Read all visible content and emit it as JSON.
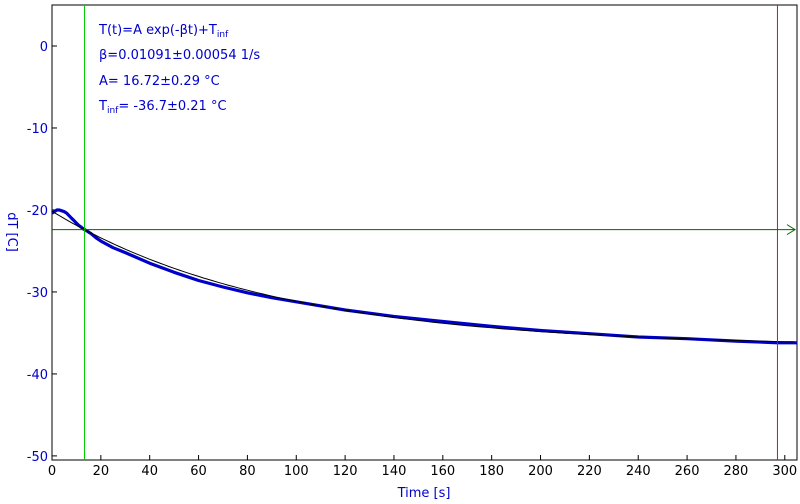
{
  "chart_data": {
    "type": "line",
    "xlabel": "Time [s]",
    "ylabel": "dT [C]",
    "xlim": [
      0,
      305
    ],
    "ylim": [
      -50.5,
      5
    ],
    "xticks": [
      0,
      20,
      40,
      60,
      80,
      100,
      120,
      140,
      160,
      180,
      200,
      220,
      240,
      260,
      280,
      300
    ],
    "yticks": [
      0,
      -10,
      -20,
      -30,
      -40,
      -50
    ],
    "grid": false,
    "fit_annotation": {
      "line1_main": "T(t)=A exp(-βt)+T",
      "line1_sub": "inf",
      "line2": "β=0.01091±0.00054 1/s",
      "line3": "A= 16.72±0.29 °C",
      "line4_pre": "T",
      "line4_sub": "inf",
      "line4_post": "= -36.7±0.21 °C"
    },
    "fit": {
      "A": 16.72,
      "beta": 0.01091,
      "T_inf": -36.7,
      "t0": 13.3
    },
    "series": [
      {
        "x": [
          0,
          1,
          2,
          3,
          4,
          5,
          6,
          7,
          8,
          9,
          10,
          11,
          12,
          13,
          14,
          16,
          18,
          20,
          25,
          30,
          40,
          50,
          60,
          70,
          80,
          90,
          100,
          120,
          140,
          160,
          180,
          200,
          220,
          240,
          260,
          280,
          297,
          305
        ],
        "y": [
          -20.4,
          -20.2,
          -20.0,
          -20.0,
          -20.1,
          -20.2,
          -20.4,
          -20.7,
          -21.0,
          -21.3,
          -21.6,
          -21.9,
          -22.1,
          -22.35,
          -22.5,
          -22.9,
          -23.4,
          -23.8,
          -24.6,
          -25.2,
          -26.5,
          -27.6,
          -28.6,
          -29.4,
          -30.1,
          -30.7,
          -31.2,
          -32.2,
          -33.0,
          -33.6,
          -34.2,
          -34.7,
          -35.1,
          -35.5,
          -35.7,
          -36.0,
          -36.2,
          -36.2
        ]
      }
    ],
    "cursors": {
      "x_left": 13.3,
      "x_right": 297,
      "y_level": -22.4
    },
    "colors": {
      "axis_text": "#0000cc",
      "data": "#0000cc",
      "fit_line": "#000000",
      "cursor_left": "#00cc00",
      "cursor_right": "#ff0000",
      "cursor_horizontal": "#006600",
      "frame": "#000000"
    }
  }
}
